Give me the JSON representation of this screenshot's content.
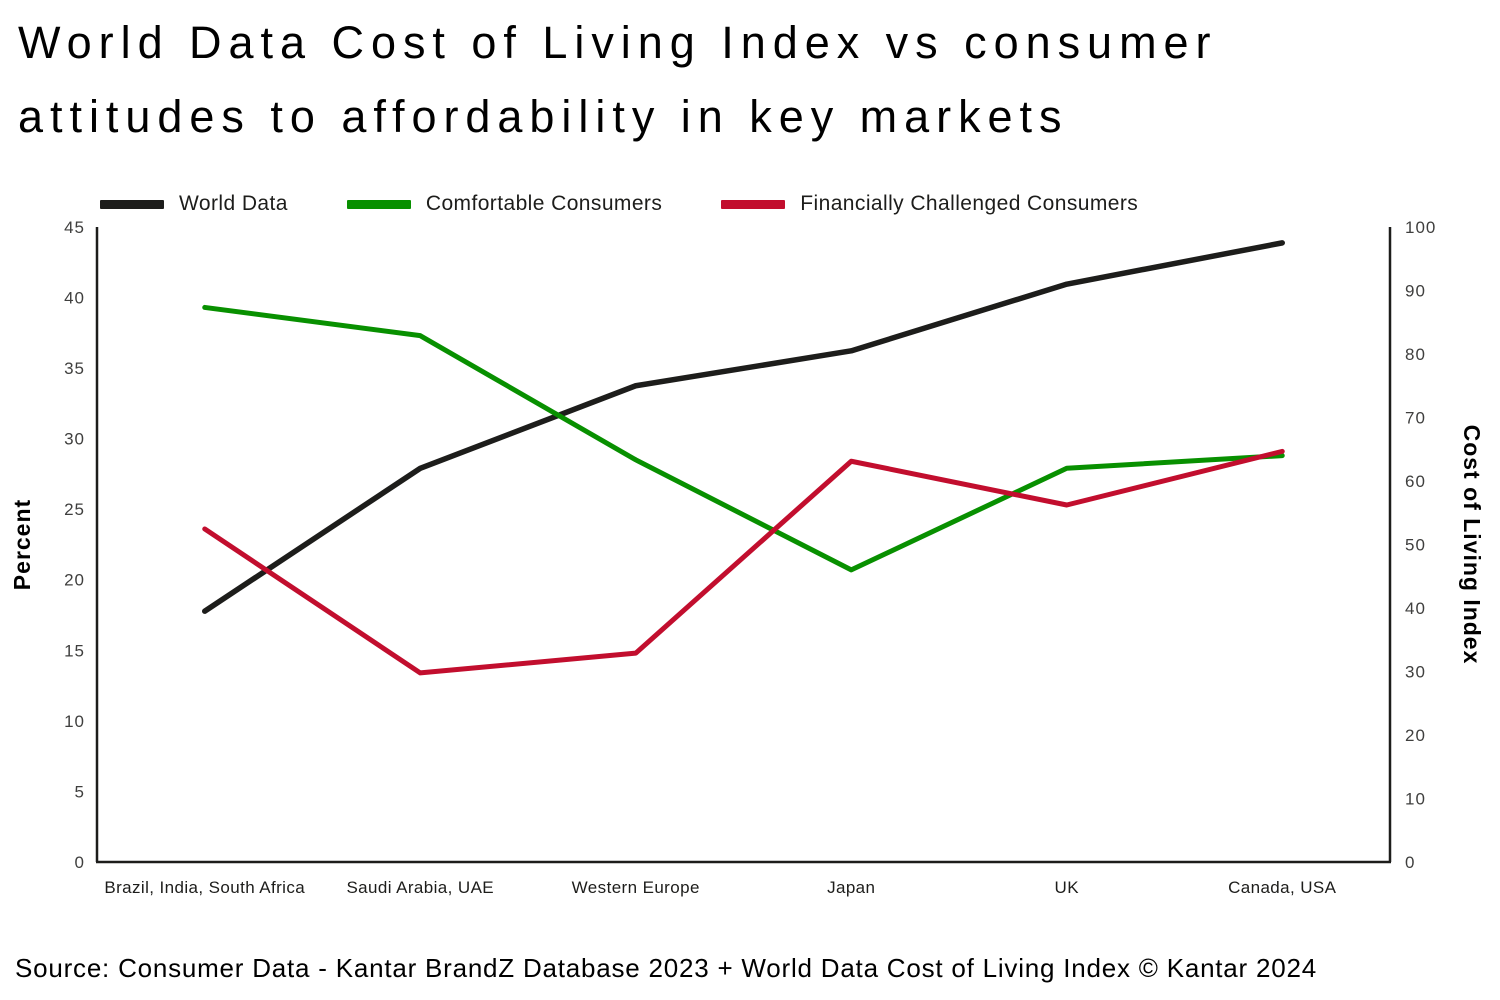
{
  "title": "World Data Cost of Living Index vs consumer attitudes to affordability in key markets",
  "source": "Source: Consumer Data - Kantar BrandZ Database 2023 + World Data Cost of Living Index © Kantar 2024",
  "colors": {
    "world_data": "#1d1d1b",
    "comfortable": "#089000",
    "challenged": "#c20e2e",
    "axis_line": "#1d1d1b",
    "tick_text": "#3f3f3e"
  },
  "chart_data": {
    "type": "line",
    "categories": [
      "Brazil, India, South Africa",
      "Saudi Arabia, UAE",
      "Western Europe",
      "Japan",
      "UK",
      "Canada, USA"
    ],
    "series": [
      {
        "name": "World Data",
        "axis": "right",
        "color": "#1d1d1b",
        "values": [
          39.5,
          62,
          75,
          80.5,
          91,
          97.5
        ]
      },
      {
        "name": "Comfortable Consumers",
        "axis": "left",
        "color": "#089000",
        "values": [
          39.3,
          37.3,
          28.5,
          20.7,
          27.9,
          28.8
        ]
      },
      {
        "name": "Financially Challenged Consumers",
        "axis": "left",
        "color": "#c20e2e",
        "values": [
          23.6,
          13.4,
          14.8,
          28.4,
          25.3,
          29.1
        ]
      }
    ],
    "left_axis": {
      "label": "Percent",
      "min": 0,
      "max": 45,
      "ticks": [
        0,
        5,
        10,
        15,
        20,
        25,
        30,
        35,
        40,
        45
      ]
    },
    "right_axis": {
      "label": "Cost of Living Index",
      "min": 0,
      "max": 100,
      "ticks": [
        0,
        10,
        20,
        30,
        40,
        50,
        60,
        70,
        80,
        90,
        100
      ]
    },
    "legend_position": "top",
    "grid": false
  }
}
